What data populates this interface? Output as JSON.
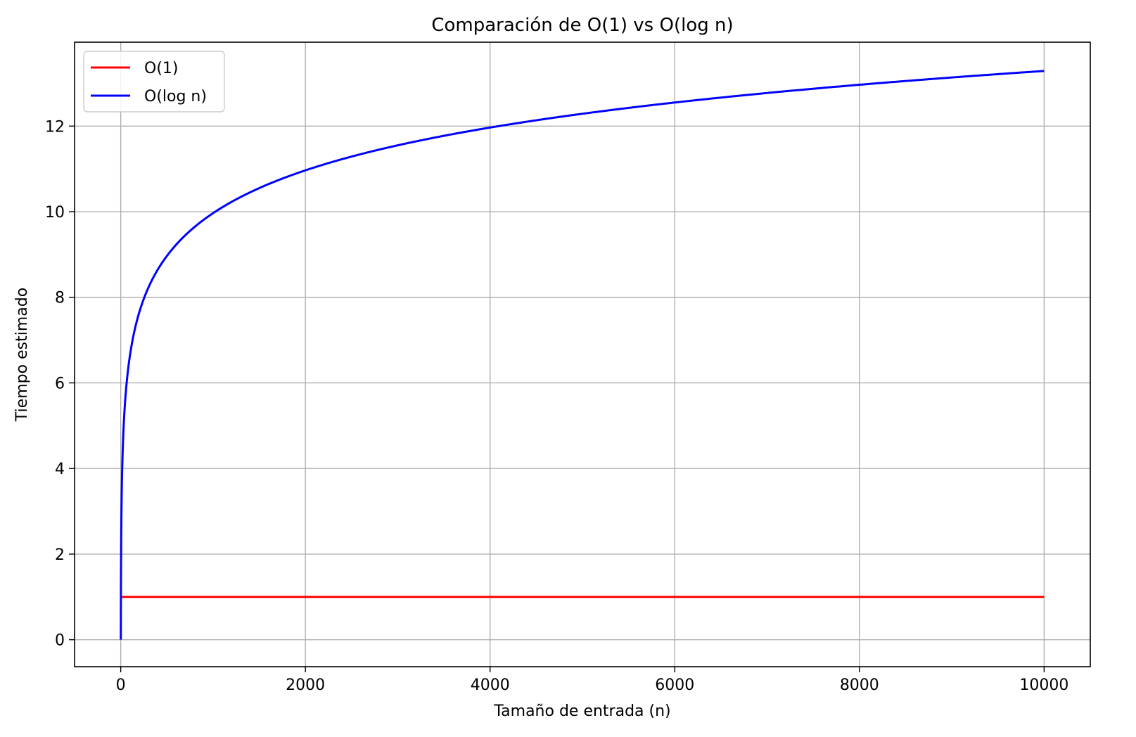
{
  "chart_data": {
    "type": "line",
    "title": "Comparación de O(1) vs O(log n)",
    "xlabel": "Tamaño de entrada (n)",
    "ylabel": "Tiempo estimado",
    "xlim": [
      -500,
      10500
    ],
    "ylim": [
      -0.63,
      13.96
    ],
    "xticks": [
      0,
      2000,
      4000,
      6000,
      8000,
      10000
    ],
    "xtick_labels": [
      "0",
      "2000",
      "4000",
      "6000",
      "8000",
      "10000"
    ],
    "yticks": [
      0,
      2,
      4,
      6,
      8,
      10,
      12
    ],
    "ytick_labels": [
      "0",
      "2",
      "4",
      "6",
      "8",
      "10",
      "12"
    ],
    "grid": true,
    "legend_position": "top-left",
    "series": [
      {
        "name": "O(1)",
        "color": "#ff0000",
        "x": [
          1,
          10000
        ],
        "y": [
          1,
          1
        ]
      },
      {
        "name": "O(log n)",
        "color": "#0000ff",
        "function": "log2",
        "x_range": [
          1,
          10000
        ],
        "x": [
          1,
          10,
          50,
          100,
          200,
          500,
          1000,
          2000,
          4000,
          6000,
          8000,
          10000
        ],
        "y": [
          0,
          3.32,
          5.64,
          6.64,
          7.64,
          8.97,
          9.97,
          10.97,
          11.97,
          12.55,
          12.97,
          13.29
        ]
      }
    ]
  }
}
